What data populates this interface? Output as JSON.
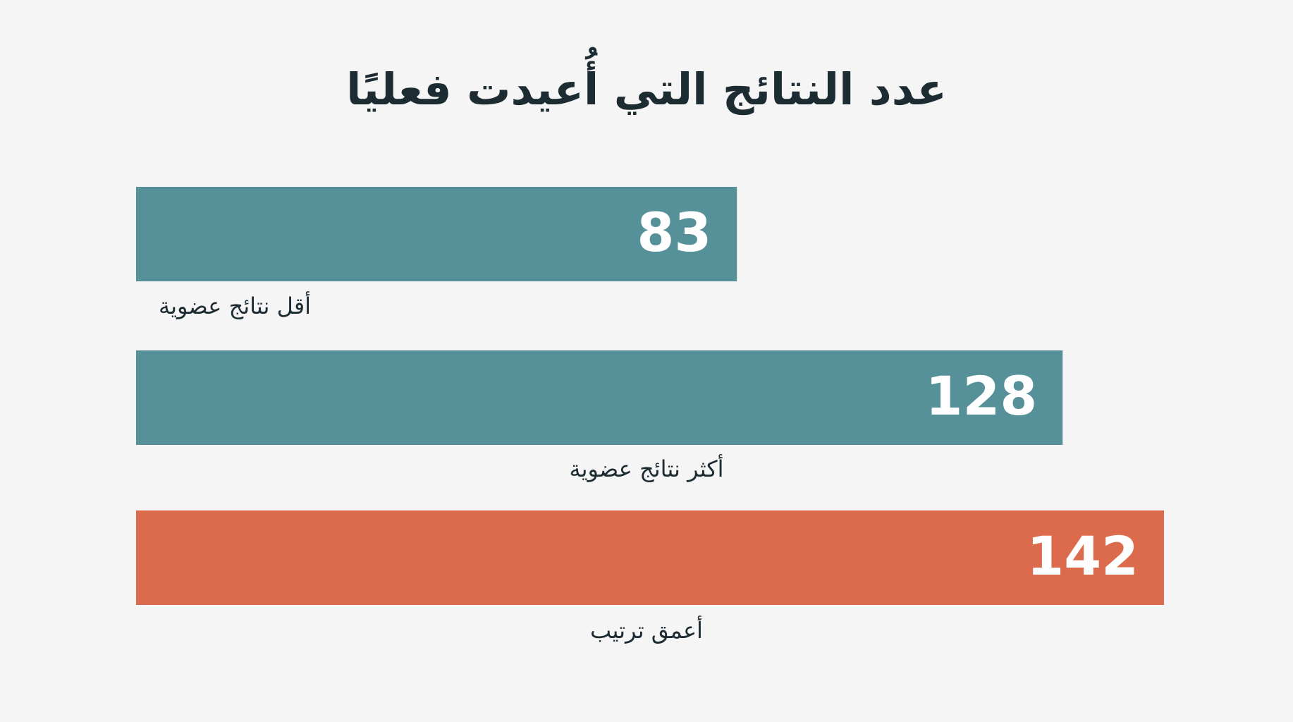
{
  "chart_data": {
    "type": "bar",
    "orientation": "horizontal",
    "title": "عدد النتائج التي أُعيدت فعليًا",
    "categories": [
      "أقل نتائج عضوية",
      "أكثر نتائج عضوية",
      "أعمق ترتيب"
    ],
    "values": [
      83,
      128,
      142
    ],
    "colors": [
      "#56919a",
      "#56919a",
      "#dc6b4e"
    ]
  }
}
